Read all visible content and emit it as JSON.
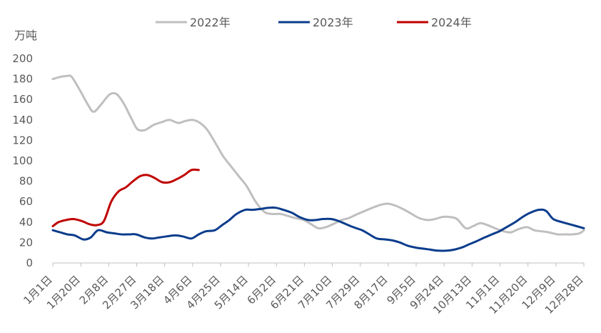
{
  "chart_data": {
    "type": "line",
    "unit_label": "万吨",
    "y_ticks": [
      "0",
      "20",
      "40",
      "60",
      "80",
      "100",
      "120",
      "140",
      "160",
      "180",
      "200"
    ],
    "ylim": [
      0,
      200
    ],
    "x_tick_labels": [
      "1月1日",
      "1月20日",
      "2月8日",
      "2月27日",
      "3月18日",
      "4月6日",
      "4月25日",
      "5月14日",
      "6月2日",
      "6月21日",
      "7月10日",
      "7月29日",
      "8月17日",
      "9月5日",
      "9月24日",
      "10月13日",
      "11月1日",
      "11月20日",
      "12月9日",
      "12月28日"
    ],
    "x_unit": "day of year (1 = 1月1日)",
    "xlim": [
      1,
      365
    ],
    "legend_position": "top",
    "grid": false,
    "series": [
      {
        "name": "2022年",
        "color": "#BFBFBF",
        "x": [
          1,
          6,
          11,
          14,
          20,
          25,
          29,
          34,
          40,
          45,
          50,
          55,
          59,
          64,
          70,
          76,
          81,
          87,
          92,
          97,
          102,
          107,
          113,
          118,
          124,
          129,
          134,
          140,
          146,
          151,
          157,
          162,
          167,
          173,
          178,
          183,
          188,
          193,
          199,
          204,
          210,
          215,
          220,
          226,
          231,
          236,
          242,
          247,
          252,
          258,
          263,
          268,
          273,
          278,
          284,
          289,
          294,
          299,
          304,
          310,
          315,
          320,
          326,
          331,
          336,
          341,
          347,
          352,
          357,
          362,
          365
        ],
        "values": [
          180,
          182,
          183,
          182,
          168,
          155,
          148,
          155,
          165,
          165,
          155,
          141,
          131,
          130,
          135,
          138,
          140,
          137,
          139,
          140,
          137,
          130,
          116,
          104,
          93,
          84,
          75,
          60,
          50,
          48,
          48,
          46,
          44,
          42,
          38,
          34,
          35,
          38,
          42,
          44,
          48,
          51,
          54,
          57,
          58,
          56,
          52,
          48,
          44,
          42,
          43,
          45,
          45,
          43,
          34,
          36,
          39,
          37,
          34,
          31,
          30,
          33,
          35,
          32,
          31,
          30,
          28,
          28,
          28,
          29,
          32
        ]
      },
      {
        "name": "2023年",
        "color": "#0B3C8C",
        "x": [
          1,
          6,
          11,
          16,
          22,
          27,
          32,
          38,
          43,
          48,
          53,
          58,
          64,
          69,
          74,
          79,
          85,
          90,
          96,
          101,
          106,
          112,
          117,
          122,
          127,
          133,
          138,
          144,
          149,
          154,
          159,
          165,
          170,
          176,
          181,
          186,
          192,
          197,
          202,
          207,
          213,
          218,
          223,
          229,
          234,
          239,
          244,
          250,
          255,
          260,
          265,
          271,
          276,
          281,
          286,
          291,
          297,
          302,
          307,
          312,
          318,
          323,
          328,
          334,
          339,
          344,
          350,
          355,
          360,
          365
        ],
        "values": [
          32,
          30,
          28,
          27,
          23,
          25,
          32,
          30,
          29,
          28,
          28,
          28,
          25,
          24,
          25,
          26,
          27,
          26,
          24,
          28,
          31,
          32,
          37,
          42,
          48,
          52,
          52,
          53,
          54,
          54,
          52,
          49,
          45,
          42,
          42,
          43,
          43,
          41,
          38,
          35,
          32,
          28,
          24,
          23,
          22,
          20,
          17,
          15,
          14,
          13,
          12,
          12,
          13,
          15,
          18,
          21,
          25,
          28,
          31,
          35,
          40,
          45,
          49,
          52,
          51,
          43,
          40,
          38,
          36,
          34
        ]
      },
      {
        "name": "2024年",
        "color": "#C00000",
        "x": [
          1,
          5,
          10,
          15,
          21,
          26,
          31,
          36,
          41,
          46,
          51,
          56,
          61,
          66,
          71,
          76,
          81,
          86,
          91,
          96,
          101
        ],
        "values": [
          36,
          40,
          42,
          43,
          41,
          38,
          37,
          41,
          60,
          70,
          74,
          80,
          85,
          86,
          83,
          79,
          79,
          82,
          86,
          91,
          91
        ]
      }
    ]
  }
}
